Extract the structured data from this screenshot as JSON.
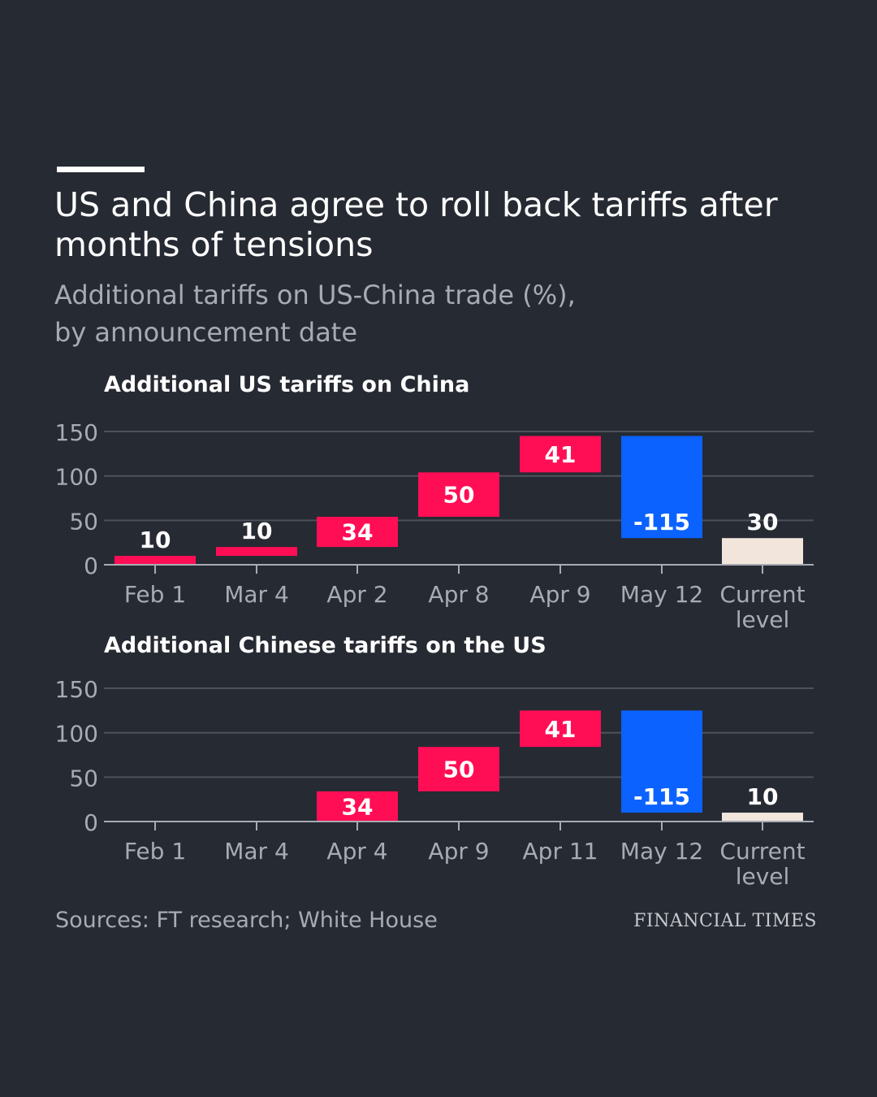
{
  "header": {
    "title": "US and China agree to roll back tariffs after months of tensions",
    "subtitle_line1": "Additional tariffs on US-China trade (%),",
    "subtitle_line2": "by announcement date"
  },
  "footer": {
    "source": "Sources: FT research; White House",
    "brand": "FINANCIAL TIMES"
  },
  "colors": {
    "increase": "#ff0e55",
    "decrease": "#0b62ff",
    "total": "#f2e6dc",
    "background": "#262a33",
    "grid": "#4e525b",
    "axis": "#a8abb2",
    "label": "#ffffff",
    "label_on_total": "#ffffff"
  },
  "chart_data": [
    {
      "type": "bar",
      "subtype": "waterfall",
      "title": "Additional US tariffs on China",
      "categories": [
        [
          "Feb 1"
        ],
        [
          "Mar 4"
        ],
        [
          "Apr 2"
        ],
        [
          "Apr 8"
        ],
        [
          "Apr 9"
        ],
        [
          "May 12"
        ],
        [
          "Current",
          "level"
        ]
      ],
      "values": [
        10,
        10,
        34,
        50,
        41,
        -115,
        30
      ],
      "value_labels": [
        "10",
        "10",
        "34",
        "50",
        "41",
        "-115",
        "30"
      ],
      "kinds": [
        "increase",
        "increase",
        "increase",
        "increase",
        "increase",
        "decrease",
        "total"
      ],
      "yticks": [
        0,
        50,
        100,
        150
      ],
      "ylim": [
        0,
        150
      ],
      "grid": true
    },
    {
      "type": "bar",
      "subtype": "waterfall",
      "title": "Additional Chinese tariffs on the US",
      "categories": [
        [
          "Feb 1"
        ],
        [
          "Mar 4"
        ],
        [
          "Apr 4"
        ],
        [
          "Apr 9"
        ],
        [
          "Apr 11"
        ],
        [
          "May 12"
        ],
        [
          "Current",
          "level"
        ]
      ],
      "values": [
        0,
        0,
        34,
        50,
        41,
        -115,
        10
      ],
      "value_labels": [
        "",
        "",
        "34",
        "50",
        "41",
        "-115",
        "10"
      ],
      "kinds": [
        "increase",
        "increase",
        "increase",
        "increase",
        "increase",
        "decrease",
        "total"
      ],
      "yticks": [
        0,
        50,
        100,
        150
      ],
      "ylim": [
        0,
        150
      ],
      "grid": true
    }
  ]
}
